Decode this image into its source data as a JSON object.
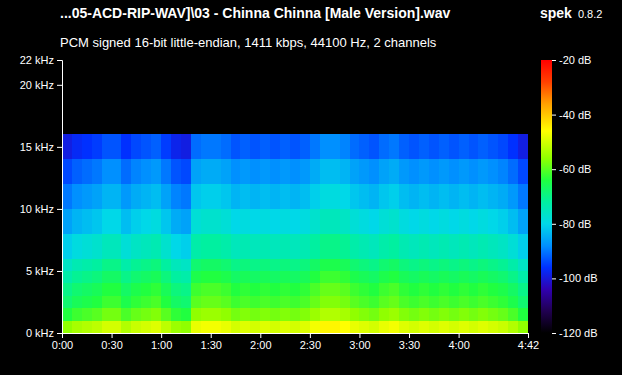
{
  "chart_data": {
    "type": "heatmap",
    "title": "...05-ACD-RIP-WAV]\\03 - Chinna Chinna [Male Version].wav",
    "app_name": "spek",
    "app_version": "0.8.2",
    "subtitle": "PCM signed 16-bit little-endian, 1411 kbps, 44100 Hz, 2 channels",
    "xlim": [
      0,
      282
    ],
    "xticks": [
      {
        "value": 0,
        "label": "0:00"
      },
      {
        "value": 30,
        "label": "0:30"
      },
      {
        "value": 60,
        "label": "1:00"
      },
      {
        "value": 90,
        "label": "1:30"
      },
      {
        "value": 120,
        "label": "2:00"
      },
      {
        "value": 150,
        "label": "2:30"
      },
      {
        "value": 180,
        "label": "3:00"
      },
      {
        "value": 210,
        "label": "3:30"
      },
      {
        "value": 240,
        "label": "4:00"
      },
      {
        "value": 282,
        "label": "4:42"
      }
    ],
    "ylim": [
      0,
      22
    ],
    "yticks": [
      {
        "value": 0,
        "label": "0 kHz"
      },
      {
        "value": 5,
        "label": "5 kHz"
      },
      {
        "value": 10,
        "label": "10 kHz"
      },
      {
        "value": 15,
        "label": "15 kHz"
      },
      {
        "value": 20,
        "label": "20 kHz"
      },
      {
        "value": 22,
        "label": "22 kHz"
      }
    ],
    "x_bins": [
      0,
      6,
      12,
      18,
      24,
      30,
      36,
      42,
      48,
      54,
      60,
      66,
      72,
      78,
      84,
      90,
      96,
      102,
      108,
      114,
      120,
      126,
      132,
      138,
      144,
      150,
      156,
      162,
      168,
      174,
      180,
      186,
      192,
      198,
      204,
      210,
      216,
      222,
      228,
      234,
      240,
      246,
      252,
      258,
      264,
      270,
      276,
      282
    ],
    "y_bins": [
      0,
      1,
      2,
      3,
      4,
      5,
      6,
      8,
      10,
      12,
      14,
      16,
      22
    ],
    "z": [
      [
        -56,
        -54,
        -53,
        -52,
        -50,
        -50,
        -53,
        -51,
        -50,
        -49,
        -52,
        -55,
        -56,
        -48,
        -47,
        -47,
        -48,
        -50,
        -49,
        -50,
        -49,
        -50,
        -49,
        -50,
        -49,
        -47,
        -45,
        -45,
        -46,
        -48,
        -49,
        -50,
        -48,
        -47,
        -49,
        -50,
        -49,
        -50,
        -49,
        -50,
        -49,
        -50,
        -49,
        -50,
        -51,
        -53,
        -56
      ],
      [
        -64,
        -62,
        -61,
        -60,
        -58,
        -58,
        -61,
        -59,
        -58,
        -57,
        -60,
        -63,
        -64,
        -56,
        -55,
        -55,
        -56,
        -58,
        -57,
        -58,
        -57,
        -58,
        -57,
        -58,
        -57,
        -55,
        -53,
        -53,
        -54,
        -56,
        -57,
        -58,
        -56,
        -55,
        -57,
        -58,
        -57,
        -58,
        -57,
        -58,
        -57,
        -58,
        -57,
        -58,
        -59,
        -61,
        -64
      ],
      [
        -68,
        -66,
        -65,
        -64,
        -62,
        -62,
        -65,
        -63,
        -62,
        -61,
        -64,
        -67,
        -68,
        -60,
        -59,
        -59,
        -60,
        -62,
        -61,
        -62,
        -61,
        -62,
        -61,
        -62,
        -61,
        -59,
        -57,
        -57,
        -58,
        -60,
        -61,
        -62,
        -60,
        -59,
        -61,
        -62,
        -61,
        -62,
        -61,
        -62,
        -61,
        -62,
        -61,
        -62,
        -63,
        -65,
        -68
      ],
      [
        -70,
        -68,
        -67,
        -66,
        -64,
        -64,
        -67,
        -65,
        -64,
        -63,
        -66,
        -69,
        -70,
        -62,
        -61,
        -61,
        -62,
        -64,
        -63,
        -64,
        -63,
        -64,
        -63,
        -64,
        -63,
        -61,
        -59,
        -59,
        -60,
        -62,
        -63,
        -64,
        -62,
        -61,
        -63,
        -64,
        -63,
        -64,
        -63,
        -64,
        -63,
        -64,
        -63,
        -64,
        -65,
        -67,
        -70
      ],
      [
        -73,
        -71,
        -70,
        -69,
        -67,
        -67,
        -70,
        -68,
        -67,
        -66,
        -69,
        -72,
        -73,
        -65,
        -64,
        -64,
        -65,
        -67,
        -66,
        -67,
        -66,
        -67,
        -66,
        -67,
        -66,
        -64,
        -62,
        -62,
        -63,
        -65,
        -66,
        -67,
        -65,
        -64,
        -66,
        -67,
        -66,
        -67,
        -66,
        -67,
        -66,
        -67,
        -66,
        -67,
        -68,
        -70,
        -73
      ],
      [
        -76,
        -74,
        -73,
        -72,
        -70,
        -70,
        -73,
        -71,
        -70,
        -69,
        -72,
        -75,
        -76,
        -68,
        -67,
        -67,
        -68,
        -70,
        -69,
        -70,
        -69,
        -70,
        -69,
        -70,
        -69,
        -67,
        -65,
        -65,
        -66,
        -68,
        -69,
        -70,
        -68,
        -67,
        -69,
        -70,
        -69,
        -70,
        -69,
        -70,
        -69,
        -70,
        -69,
        -70,
        -71,
        -73,
        -76
      ],
      [
        -81,
        -79,
        -78,
        -77,
        -75,
        -75,
        -78,
        -76,
        -75,
        -74,
        -77,
        -80,
        -81,
        -73,
        -72,
        -72,
        -73,
        -75,
        -74,
        -75,
        -74,
        -75,
        -74,
        -75,
        -74,
        -72,
        -70,
        -70,
        -71,
        -73,
        -74,
        -75,
        -73,
        -72,
        -74,
        -75,
        -74,
        -75,
        -74,
        -75,
        -74,
        -75,
        -74,
        -75,
        -76,
        -78,
        -81
      ],
      [
        -86,
        -84,
        -83,
        -82,
        -80,
        -80,
        -83,
        -81,
        -80,
        -79,
        -82,
        -85,
        -86,
        -78,
        -77,
        -77,
        -78,
        -80,
        -79,
        -80,
        -79,
        -80,
        -79,
        -80,
        -79,
        -77,
        -75,
        -75,
        -76,
        -78,
        -79,
        -80,
        -78,
        -77,
        -79,
        -80,
        -79,
        -80,
        -79,
        -80,
        -79,
        -80,
        -79,
        -80,
        -81,
        -83,
        -86
      ],
      [
        -90,
        -88,
        -87,
        -86,
        -84,
        -84,
        -87,
        -85,
        -84,
        -83,
        -86,
        -89,
        -90,
        -82,
        -81,
        -81,
        -82,
        -84,
        -83,
        -84,
        -83,
        -84,
        -83,
        -84,
        -83,
        -81,
        -79,
        -79,
        -80,
        -82,
        -83,
        -84,
        -82,
        -81,
        -83,
        -84,
        -83,
        -84,
        -83,
        -84,
        -83,
        -84,
        -83,
        -84,
        -85,
        -87,
        -90
      ],
      [
        -94,
        -92,
        -91,
        -90,
        -88,
        -88,
        -91,
        -89,
        -88,
        -87,
        -90,
        -93,
        -94,
        -86,
        -85,
        -85,
        -86,
        -88,
        -87,
        -88,
        -87,
        -88,
        -87,
        -88,
        -87,
        -85,
        -83,
        -83,
        -84,
        -86,
        -87,
        -88,
        -86,
        -85,
        -87,
        -88,
        -87,
        -88,
        -87,
        -88,
        -87,
        -88,
        -87,
        -88,
        -89,
        -91,
        -94
      ],
      [
        -99,
        -97,
        -96,
        -95,
        -93,
        -93,
        -96,
        -94,
        -93,
        -92,
        -95,
        -98,
        -99,
        -91,
        -90,
        -90,
        -91,
        -93,
        -92,
        -93,
        -92,
        -93,
        -92,
        -93,
        -92,
        -90,
        -88,
        -88,
        -89,
        -91,
        -92,
        -93,
        -91,
        -90,
        -92,
        -93,
        -92,
        -93,
        -92,
        -93,
        -92,
        -93,
        -92,
        -93,
        -94,
        -96,
        -99
      ],
      [
        -120,
        -120,
        -120,
        -120,
        -120,
        -120,
        -120,
        -120,
        -120,
        -120,
        -120,
        -120,
        -120,
        -120,
        -120,
        -120,
        -120,
        -120,
        -120,
        -120,
        -120,
        -120,
        -120,
        -120,
        -120,
        -120,
        -120,
        -120,
        -120,
        -120,
        -120,
        -120,
        -120,
        -120,
        -120,
        -120,
        -120,
        -120,
        -120,
        -120,
        -120,
        -120,
        -120,
        -120,
        -120,
        -120,
        -120
      ]
    ],
    "colorbar": {
      "range": [
        -120,
        -20
      ],
      "ticks": [
        {
          "value": -20,
          "label": "-20 dB"
        },
        {
          "value": -40,
          "label": "-40 dB"
        },
        {
          "value": -60,
          "label": "-60 dB"
        },
        {
          "value": -80,
          "label": "-80 dB"
        },
        {
          "value": -100,
          "label": "-100 dB"
        },
        {
          "value": -120,
          "label": "-120 dB"
        }
      ]
    }
  }
}
